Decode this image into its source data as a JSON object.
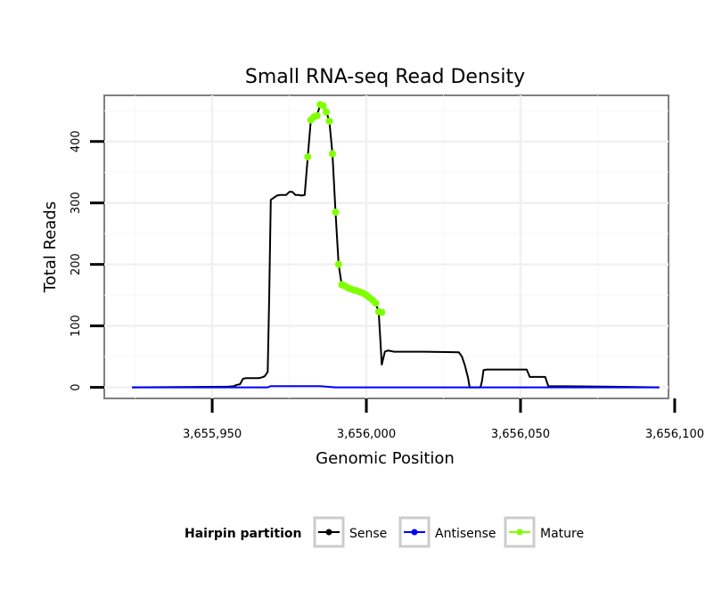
{
  "chart_data": {
    "type": "line",
    "title": "Small RNA-seq Read Density",
    "xlabel": "Genomic Position",
    "ylabel": "Total Reads",
    "xlim": [
      3655915,
      3656098
    ],
    "ylim": [
      -18,
      475
    ],
    "x_ticks": [
      3655950,
      3656000,
      3656050,
      3656100
    ],
    "x_tick_labels": [
      "3,655,950",
      "3,656,000",
      "3,656,050",
      "3,656,100"
    ],
    "y_ticks": [
      0,
      100,
      200,
      300,
      400
    ],
    "y_tick_labels": [
      "0",
      "100",
      "200",
      "300",
      "400"
    ],
    "grid": true,
    "legend": {
      "title": "Hairpin partition",
      "position": "bottom",
      "entries": [
        "Sense",
        "Antisense",
        "Mature"
      ]
    },
    "series": [
      {
        "name": "Sense",
        "color": "#000000",
        "x": [
          3655924,
          3655955,
          3655957,
          3655958,
          3655959,
          3655960,
          3655961,
          3655965,
          3655966,
          3655967,
          3655968,
          3655968.5,
          3655969,
          3655971,
          3655972,
          3655973,
          3655974,
          3655975,
          3655976,
          3655977,
          3655978,
          3655979,
          3655980,
          3655981,
          3655982,
          3655983,
          3655984,
          3655985,
          3655986,
          3655987,
          3655988,
          3655989,
          3655990,
          3655991,
          3655992,
          3655993,
          3655994,
          3655995,
          3655996,
          3655997,
          3655998,
          3655999,
          3656000,
          3656001,
          3656002,
          3656003,
          3656004,
          3656005,
          3656006,
          3656007,
          3656008,
          3656009,
          3656019,
          3656030,
          3656031,
          3656032,
          3656033,
          3656033.5,
          3656037,
          3656037.5,
          3656038,
          3656039,
          3656052,
          3656053,
          3656058,
          3656059,
          3656080,
          3656095
        ],
        "y": [
          0,
          1,
          2,
          4,
          5,
          14,
          15,
          15,
          16,
          18,
          25,
          150,
          305,
          312,
          313,
          313,
          313,
          318,
          318,
          313,
          313,
          312,
          313,
          375,
          435,
          440,
          442,
          460,
          458,
          448,
          433,
          380,
          285,
          200,
          167,
          165,
          162,
          160,
          158,
          157,
          155,
          153,
          150,
          146,
          142,
          137,
          123,
          37,
          58,
          60,
          59,
          58,
          58,
          57,
          50,
          35,
          15,
          0,
          0,
          10,
          28,
          29,
          29,
          17,
          17,
          2,
          1,
          0
        ]
      },
      {
        "name": "Antisense",
        "color": "#0000ff",
        "x": [
          3655924,
          3655968,
          3655969,
          3655985,
          3655990,
          3656095
        ],
        "y": [
          0,
          0,
          2,
          2,
          0,
          0
        ]
      },
      {
        "name": "Mature",
        "color": "#7fff00",
        "x": [
          3655981,
          3655982,
          3655983,
          3655984,
          3655985,
          3655986,
          3655987,
          3655988,
          3655989,
          3655990,
          3655991,
          3655992,
          3655993,
          3655994,
          3655995,
          3655996,
          3655997,
          3655998,
          3655999,
          3656000,
          3656001,
          3656002,
          3656003,
          3656004,
          3656005
        ],
        "y": [
          375,
          435,
          440,
          442,
          460,
          458,
          448,
          433,
          380,
          285,
          200,
          167,
          165,
          162,
          160,
          158,
          157,
          155,
          153,
          150,
          146,
          142,
          137,
          123,
          122
        ]
      }
    ]
  }
}
